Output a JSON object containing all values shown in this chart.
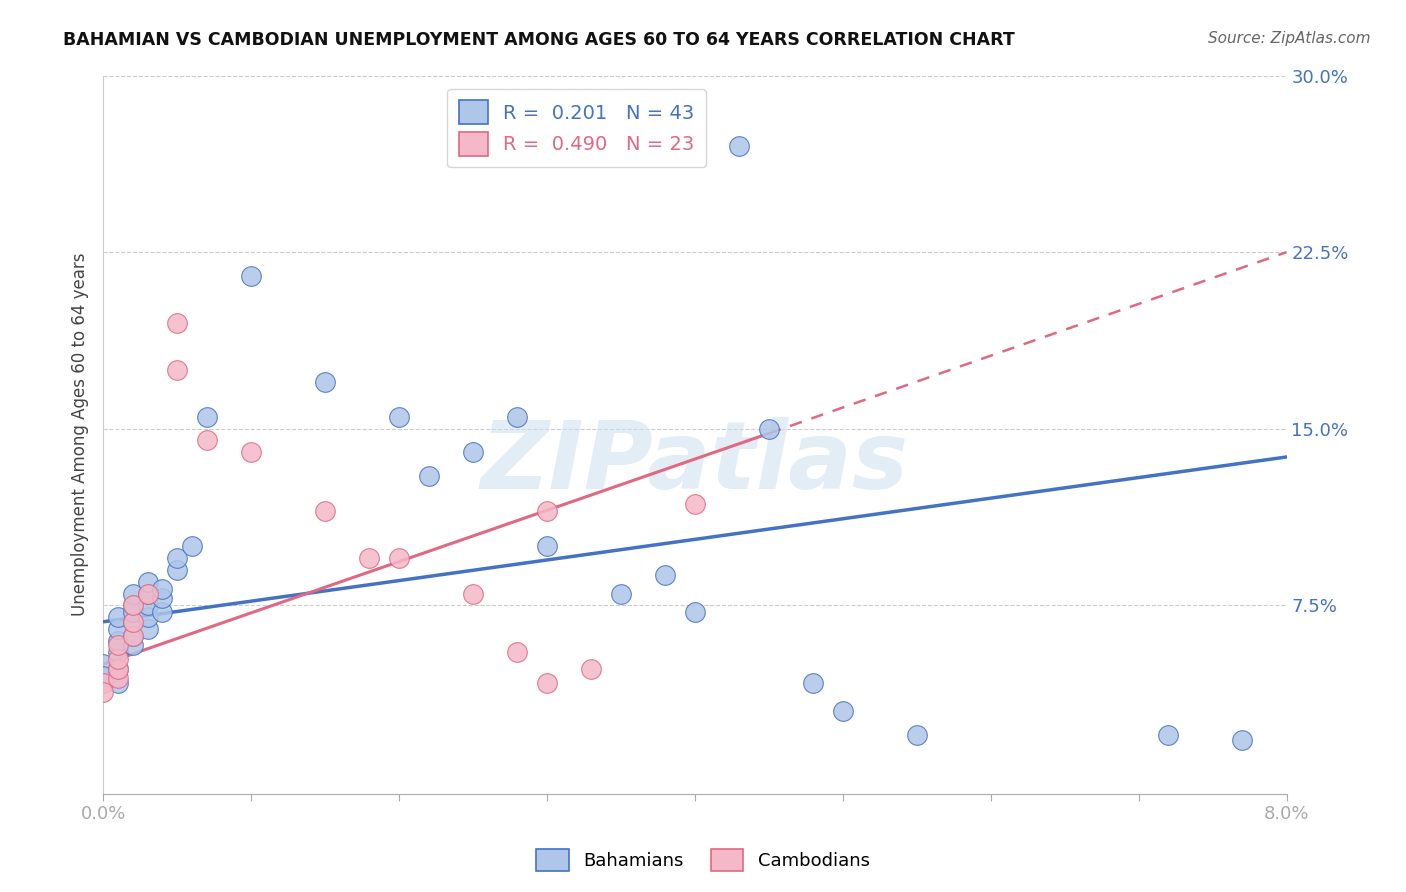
{
  "title": "BAHAMIAN VS CAMBODIAN UNEMPLOYMENT AMONG AGES 60 TO 64 YEARS CORRELATION CHART",
  "source": "Source: ZipAtlas.com",
  "ylabel": "Unemployment Among Ages 60 to 64 years",
  "watermark": "ZIPatlas",
  "xlim": [
    0.0,
    0.08
  ],
  "ylim": [
    -0.005,
    0.3
  ],
  "xticks": [
    0.0,
    0.01,
    0.02,
    0.03,
    0.04,
    0.05,
    0.06,
    0.07,
    0.08
  ],
  "xtick_labels": [
    "0.0%",
    "",
    "",
    "",
    "",
    "",
    "",
    "",
    "8.0%"
  ],
  "ytick_labels": [
    "7.5%",
    "15.0%",
    "22.5%",
    "30.0%"
  ],
  "yticks": [
    0.075,
    0.15,
    0.225,
    0.3
  ],
  "blue_R": "0.201",
  "blue_N": "43",
  "pink_R": "0.490",
  "pink_N": "23",
  "blue_color": "#aec6e8",
  "pink_color": "#f4b8c8",
  "blue_line_color": "#4472c4",
  "pink_line_color": "#e06880",
  "blue_scatter": [
    [
      0.0,
      0.05
    ],
    [
      0.0,
      0.045
    ],
    [
      0.001,
      0.048
    ],
    [
      0.001,
      0.042
    ],
    [
      0.001,
      0.055
    ],
    [
      0.001,
      0.06
    ],
    [
      0.001,
      0.065
    ],
    [
      0.001,
      0.07
    ],
    [
      0.002,
      0.058
    ],
    [
      0.002,
      0.062
    ],
    [
      0.002,
      0.068
    ],
    [
      0.002,
      0.072
    ],
    [
      0.002,
      0.075
    ],
    [
      0.002,
      0.08
    ],
    [
      0.003,
      0.065
    ],
    [
      0.003,
      0.07
    ],
    [
      0.003,
      0.075
    ],
    [
      0.003,
      0.08
    ],
    [
      0.003,
      0.085
    ],
    [
      0.004,
      0.072
    ],
    [
      0.004,
      0.078
    ],
    [
      0.004,
      0.082
    ],
    [
      0.005,
      0.09
    ],
    [
      0.005,
      0.095
    ],
    [
      0.006,
      0.1
    ],
    [
      0.007,
      0.155
    ],
    [
      0.01,
      0.215
    ],
    [
      0.015,
      0.17
    ],
    [
      0.02,
      0.155
    ],
    [
      0.022,
      0.13
    ],
    [
      0.025,
      0.14
    ],
    [
      0.028,
      0.155
    ],
    [
      0.03,
      0.1
    ],
    [
      0.035,
      0.08
    ],
    [
      0.038,
      0.088
    ],
    [
      0.04,
      0.072
    ],
    [
      0.043,
      0.27
    ],
    [
      0.045,
      0.15
    ],
    [
      0.048,
      0.042
    ],
    [
      0.05,
      0.03
    ],
    [
      0.055,
      0.02
    ],
    [
      0.072,
      0.02
    ],
    [
      0.077,
      0.018
    ]
  ],
  "pink_scatter": [
    [
      0.0,
      0.042
    ],
    [
      0.0,
      0.038
    ],
    [
      0.001,
      0.044
    ],
    [
      0.001,
      0.048
    ],
    [
      0.001,
      0.052
    ],
    [
      0.001,
      0.058
    ],
    [
      0.002,
      0.062
    ],
    [
      0.002,
      0.068
    ],
    [
      0.002,
      0.075
    ],
    [
      0.003,
      0.08
    ],
    [
      0.005,
      0.175
    ],
    [
      0.005,
      0.195
    ],
    [
      0.007,
      0.145
    ],
    [
      0.01,
      0.14
    ],
    [
      0.015,
      0.115
    ],
    [
      0.018,
      0.095
    ],
    [
      0.02,
      0.095
    ],
    [
      0.025,
      0.08
    ],
    [
      0.028,
      0.055
    ],
    [
      0.03,
      0.042
    ],
    [
      0.03,
      0.115
    ],
    [
      0.033,
      0.048
    ],
    [
      0.04,
      0.118
    ]
  ]
}
